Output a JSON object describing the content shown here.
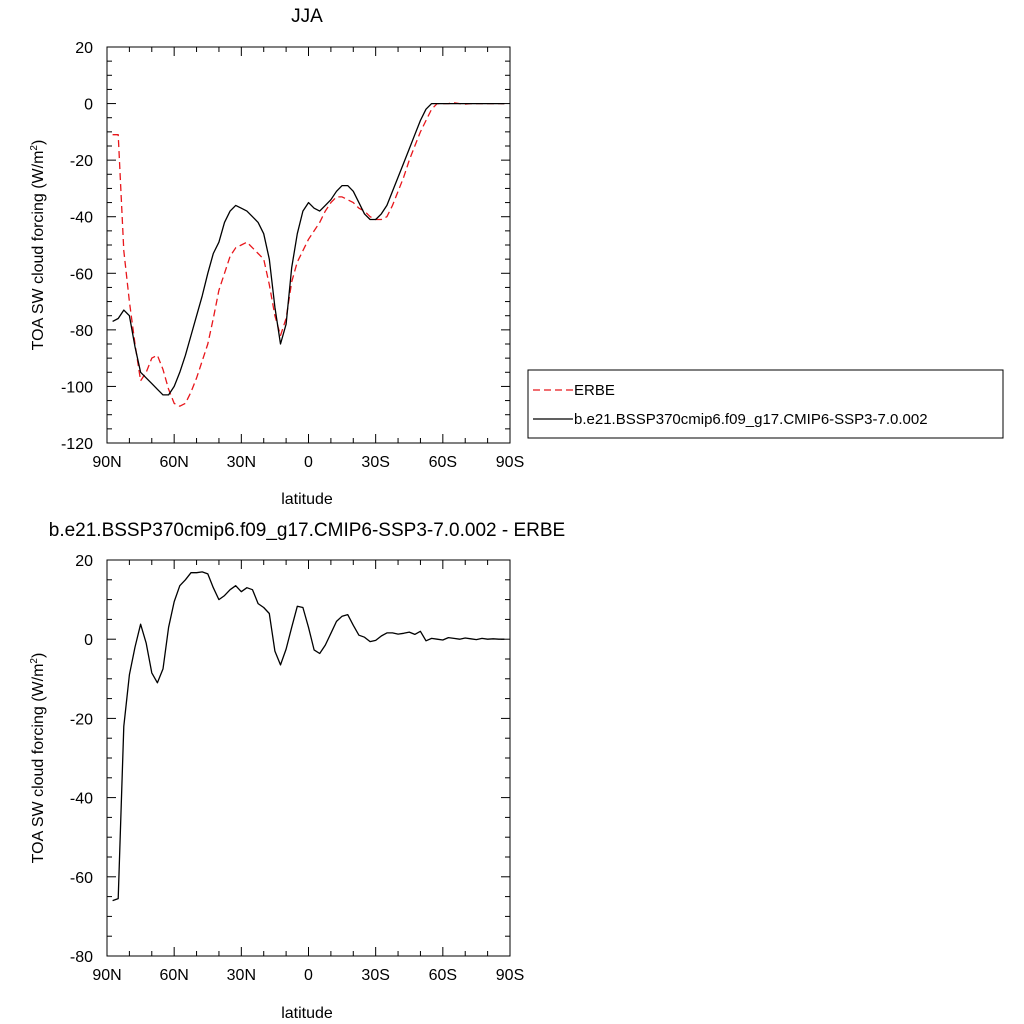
{
  "chart_data": [
    {
      "type": "line",
      "title": "JJA",
      "xlabel": "latitude",
      "ylabel": "TOA SW cloud forcing (W/m",
      "ylabel_sup": "2",
      "ylabel_close": ")",
      "xlim": [
        90,
        -90
      ],
      "ylim": [
        -120,
        20
      ],
      "xticks": [
        {
          "value": 90,
          "label": "90N"
        },
        {
          "value": 60,
          "label": "60N"
        },
        {
          "value": 30,
          "label": "30N"
        },
        {
          "value": 0,
          "label": "0"
        },
        {
          "value": -30,
          "label": "30S"
        },
        {
          "value": -60,
          "label": "60S"
        },
        {
          "value": -90,
          "label": "90S"
        }
      ],
      "yticks": [
        20,
        0,
        -20,
        -40,
        -60,
        -80,
        -100,
        -120
      ],
      "legend_position": "right",
      "series": [
        {
          "name": "ERBE",
          "color": "#e8161b",
          "dash": "dashed",
          "x": [
            87.5,
            85,
            82.5,
            80,
            77.5,
            75,
            72.5,
            70,
            67.5,
            65,
            62.5,
            60,
            57.5,
            55,
            52.5,
            50,
            47.5,
            45,
            42.5,
            40,
            37.5,
            35,
            32.5,
            30,
            27.5,
            25,
            22.5,
            20,
            17.5,
            15,
            12.5,
            10,
            7.5,
            5,
            2.5,
            0,
            -2.5,
            -5,
            -7.5,
            -10,
            -12.5,
            -15,
            -17.5,
            -20,
            -22.5,
            -25,
            -27.5,
            -30,
            -32.5,
            -35,
            -37.5,
            -40,
            -42.5,
            -45,
            -47.5,
            -50,
            -52.5,
            -55,
            -57.5,
            -60,
            -62.5,
            -65,
            -67.5,
            -70,
            -72.5,
            -75,
            -77.5,
            -80,
            -82.5,
            -85,
            -87.5
          ],
          "y": [
            -11,
            -11,
            -52,
            -70,
            -85,
            -98,
            -95,
            -90,
            -89,
            -94,
            -101,
            -106,
            -107,
            -106,
            -102,
            -97,
            -91,
            -85,
            -76,
            -66,
            -60,
            -54,
            -51,
            -50,
            -49,
            -51,
            -53,
            -55,
            -64,
            -75,
            -82,
            -76,
            -63,
            -56,
            -52,
            -48,
            -45,
            -42,
            -38,
            -35,
            -33,
            -33,
            -34,
            -35,
            -37,
            -38,
            -40,
            -41,
            -41,
            -40,
            -36,
            -31,
            -26,
            -20,
            -15,
            -10,
            -6,
            -2,
            0,
            0,
            0,
            0.3,
            0,
            -0.2,
            0,
            0,
            0,
            0,
            0,
            0,
            0
          ]
        },
        {
          "name": "b.e21.BSSP370cmip6.f09_g17.CMIP6-SSP3-7.0.002",
          "color": "#000000",
          "dash": "solid",
          "x": [
            87.5,
            85,
            82.5,
            80,
            77.5,
            75,
            72.5,
            70,
            67.5,
            65,
            62.5,
            60,
            57.5,
            55,
            52.5,
            50,
            47.5,
            45,
            42.5,
            40,
            37.5,
            35,
            32.5,
            30,
            27.5,
            25,
            22.5,
            20,
            17.5,
            15,
            12.5,
            10,
            7.5,
            5,
            2.5,
            0,
            -2.5,
            -5,
            -7.5,
            -10,
            -12.5,
            -15,
            -17.5,
            -20,
            -22.5,
            -25,
            -27.5,
            -30,
            -32.5,
            -35,
            -37.5,
            -40,
            -42.5,
            -45,
            -47.5,
            -50,
            -52.5,
            -55,
            -57.5,
            -60,
            -62.5,
            -65,
            -67.5,
            -70,
            -72.5,
            -75,
            -77.5,
            -80,
            -82.5,
            -85,
            -87.5
          ],
          "y": [
            -77,
            -76,
            -73,
            -75,
            -86,
            -95,
            -97,
            -99,
            -101,
            -103,
            -103,
            -100,
            -95,
            -89,
            -82,
            -75,
            -68,
            -60,
            -53,
            -49,
            -42,
            -38,
            -36,
            -37,
            -38,
            -40,
            -42,
            -46,
            -55,
            -72,
            -85,
            -78,
            -58,
            -46,
            -38,
            -35,
            -37,
            -38,
            -36,
            -34,
            -31,
            -29,
            -29,
            -31,
            -35,
            -39,
            -41,
            -41,
            -39,
            -36,
            -31,
            -26,
            -21,
            -16,
            -11,
            -6,
            -2,
            0,
            0,
            0,
            0,
            0,
            0,
            0,
            0,
            0,
            0,
            0,
            0,
            0,
            0
          ]
        }
      ]
    },
    {
      "type": "line",
      "title": "b.e21.BSSP370cmip6.f09_g17.CMIP6-SSP3-7.0.002 - ERBE",
      "xlabel": "latitude",
      "ylabel": "TOA SW cloud forcing (W/m",
      "ylabel_sup": "2",
      "ylabel_close": ")",
      "xlim": [
        90,
        -90
      ],
      "ylim": [
        -80,
        20
      ],
      "xticks": [
        {
          "value": 90,
          "label": "90N"
        },
        {
          "value": 60,
          "label": "60N"
        },
        {
          "value": 30,
          "label": "30N"
        },
        {
          "value": 0,
          "label": "0"
        },
        {
          "value": -30,
          "label": "30S"
        },
        {
          "value": -60,
          "label": "60S"
        },
        {
          "value": -90,
          "label": "90S"
        }
      ],
      "yticks": [
        20,
        0,
        -20,
        -40,
        -60,
        -80
      ],
      "series": [
        {
          "color": "#000000",
          "dash": "solid",
          "x": [
            87.5,
            85,
            82.5,
            80,
            77.5,
            75,
            72.5,
            70,
            67.5,
            65,
            62.5,
            60,
            57.5,
            55,
            52.5,
            50,
            47.5,
            45,
            42.5,
            40,
            37.5,
            35,
            32.5,
            30,
            27.5,
            25,
            22.5,
            20,
            17.5,
            15,
            12.5,
            10,
            7.5,
            5,
            2.5,
            0,
            -2.5,
            -5,
            -7.5,
            -10,
            -12.5,
            -15,
            -17.5,
            -20,
            -22.5,
            -25,
            -27.5,
            -30,
            -32.5,
            -35,
            -37.5,
            -40,
            -42.5,
            -45,
            -47.5,
            -50,
            -52.5,
            -55,
            -57.5,
            -60,
            -62.5,
            -65,
            -67.5,
            -70,
            -72.5,
            -75,
            -77.5,
            -80,
            -82.5,
            -85,
            -87.5
          ],
          "y": [
            -66,
            -65.5,
            -22,
            -9,
            -2,
            3.8,
            -1,
            -8.5,
            -11,
            -7.5,
            3,
            9.5,
            13.5,
            15,
            16.8,
            16.8,
            17,
            16.5,
            13,
            10,
            11,
            12.5,
            13.5,
            12,
            13,
            12.5,
            9,
            8,
            6.5,
            -3,
            -6.5,
            -2.5,
            3,
            8.3,
            8,
            3,
            -2.7,
            -3.6,
            -1.5,
            1.5,
            4.5,
            5.8,
            6.2,
            3.5,
            1,
            0.5,
            -0.6,
            -0.3,
            0.8,
            1.6,
            1.6,
            1.3,
            1.5,
            1.8,
            1.2,
            2,
            -0.4,
            0.2,
            0,
            -0.2,
            0.4,
            0.2,
            0,
            0.3,
            0.1,
            -0.1,
            0.2,
            0,
            0.1,
            0,
            0
          ]
        }
      ]
    }
  ]
}
